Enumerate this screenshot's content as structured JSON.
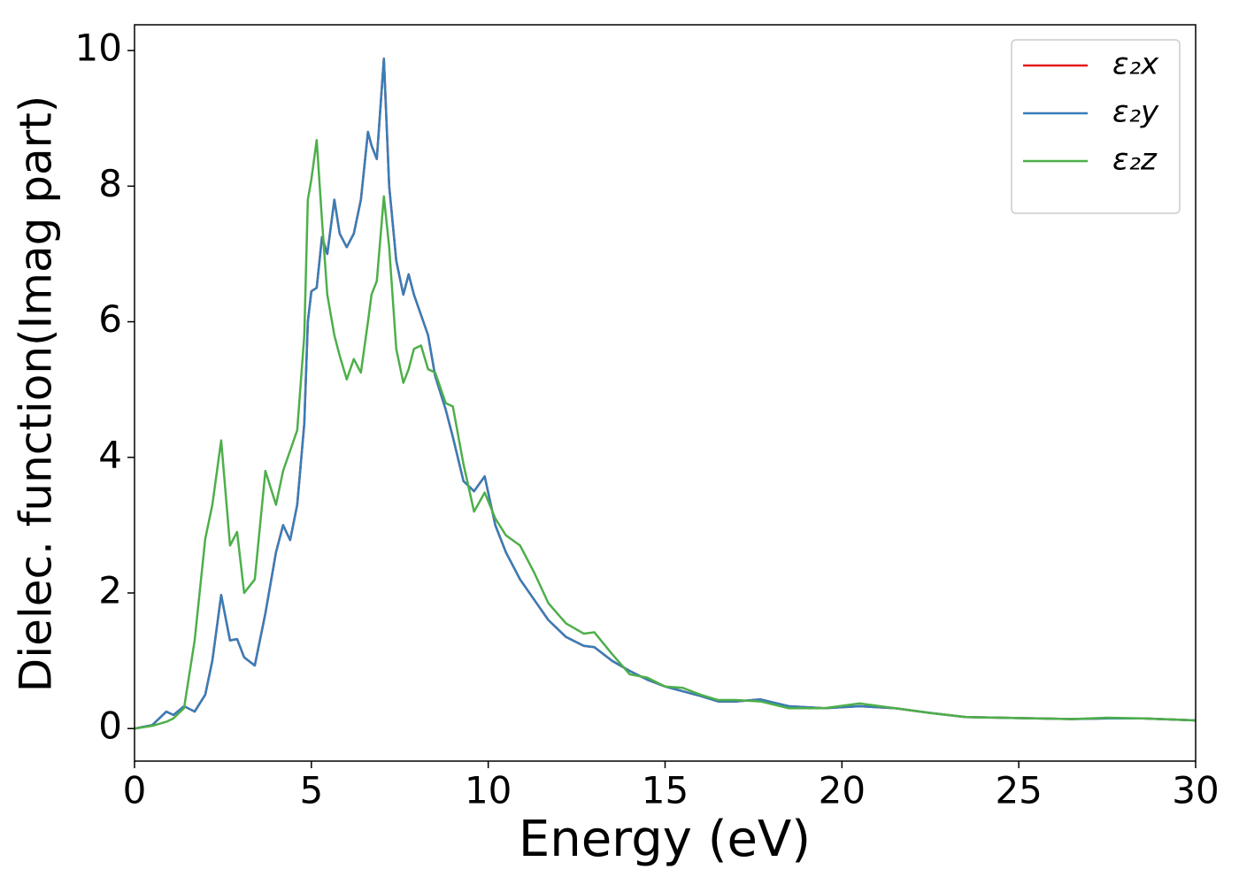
{
  "chart_data": {
    "type": "line",
    "xlabel": "Energy (eV)",
    "ylabel": "Dielec. function(Imag part)",
    "x": [
      0,
      0.5,
      0.9,
      1.1,
      1.4,
      1.7,
      2.0,
      2.2,
      2.45,
      2.7,
      2.9,
      3.1,
      3.4,
      3.7,
      4.0,
      4.2,
      4.4,
      4.6,
      4.8,
      4.9,
      5.0,
      5.15,
      5.3,
      5.45,
      5.65,
      5.8,
      6.0,
      6.2,
      6.4,
      6.6,
      6.7,
      6.85,
      7.05,
      7.2,
      7.4,
      7.6,
      7.75,
      7.9,
      8.1,
      8.3,
      8.5,
      8.8,
      9.0,
      9.3,
      9.6,
      9.9,
      10.2,
      10.5,
      10.9,
      11.3,
      11.7,
      12.2,
      12.7,
      13.0,
      13.5,
      14.0,
      14.5,
      15.0,
      15.5,
      16.0,
      16.5,
      17.0,
      17.7,
      18.5,
      19.5,
      20.5,
      21.5,
      22.5,
      23.5,
      24.5,
      25.5,
      26.5,
      27.5,
      28.5,
      30
    ],
    "series": [
      {
        "name": "ε₂x",
        "color": "#e41a1c",
        "values": [
          0,
          0.05,
          0.25,
          0.2,
          0.33,
          0.25,
          0.5,
          1.0,
          1.97,
          1.3,
          1.32,
          1.05,
          0.93,
          1.7,
          2.6,
          3.0,
          2.78,
          3.3,
          4.5,
          6.0,
          6.45,
          6.5,
          7.25,
          7.0,
          7.8,
          7.3,
          7.1,
          7.3,
          7.8,
          8.8,
          8.6,
          8.4,
          9.88,
          8.0,
          6.9,
          6.4,
          6.7,
          6.4,
          6.1,
          5.8,
          5.2,
          4.7,
          4.3,
          3.65,
          3.5,
          3.72,
          3.0,
          2.6,
          2.2,
          1.9,
          1.6,
          1.35,
          1.22,
          1.2,
          1.0,
          0.85,
          0.72,
          0.62,
          0.55,
          0.48,
          0.4,
          0.4,
          0.43,
          0.33,
          0.3,
          0.33,
          0.3,
          0.23,
          0.17,
          0.16,
          0.15,
          0.14,
          0.15,
          0.15,
          0.12
        ]
      },
      {
        "name": "ε₂y",
        "color": "#377eb8",
        "values": [
          0,
          0.05,
          0.25,
          0.2,
          0.33,
          0.25,
          0.5,
          1.0,
          1.97,
          1.3,
          1.32,
          1.05,
          0.93,
          1.7,
          2.6,
          3.0,
          2.78,
          3.3,
          4.5,
          6.0,
          6.45,
          6.5,
          7.25,
          7.0,
          7.8,
          7.3,
          7.1,
          7.3,
          7.8,
          8.8,
          8.6,
          8.4,
          9.88,
          8.0,
          6.9,
          6.4,
          6.7,
          6.4,
          6.1,
          5.8,
          5.2,
          4.7,
          4.3,
          3.65,
          3.5,
          3.72,
          3.0,
          2.6,
          2.2,
          1.9,
          1.6,
          1.35,
          1.22,
          1.2,
          1.0,
          0.85,
          0.72,
          0.62,
          0.55,
          0.48,
          0.4,
          0.4,
          0.43,
          0.33,
          0.3,
          0.33,
          0.3,
          0.23,
          0.17,
          0.16,
          0.15,
          0.14,
          0.15,
          0.15,
          0.12
        ]
      },
      {
        "name": "ε₂z",
        "color": "#4daf4a",
        "values": [
          0,
          0.04,
          0.1,
          0.15,
          0.3,
          1.3,
          2.8,
          3.3,
          4.25,
          2.7,
          2.9,
          2.0,
          2.2,
          3.8,
          3.3,
          3.8,
          4.1,
          4.4,
          5.8,
          7.8,
          8.1,
          8.68,
          7.5,
          6.4,
          5.8,
          5.5,
          5.15,
          5.45,
          5.25,
          6.0,
          6.4,
          6.6,
          7.85,
          7.1,
          5.6,
          5.1,
          5.3,
          5.6,
          5.65,
          5.3,
          5.25,
          4.8,
          4.75,
          3.9,
          3.2,
          3.48,
          3.1,
          2.85,
          2.7,
          2.3,
          1.85,
          1.55,
          1.4,
          1.42,
          1.1,
          0.8,
          0.75,
          0.62,
          0.6,
          0.5,
          0.42,
          0.42,
          0.4,
          0.3,
          0.3,
          0.37,
          0.3,
          0.23,
          0.17,
          0.16,
          0.15,
          0.14,
          0.16,
          0.15,
          0.12
        ]
      }
    ],
    "xlim": [
      0,
      30
    ],
    "xticks": [
      0,
      5,
      10,
      15,
      20,
      25,
      30
    ],
    "ylim": [
      -0.48,
      10.38
    ],
    "yticks": [
      0,
      2,
      4,
      6,
      8,
      10
    ],
    "grid": false,
    "legend": "upper right"
  }
}
